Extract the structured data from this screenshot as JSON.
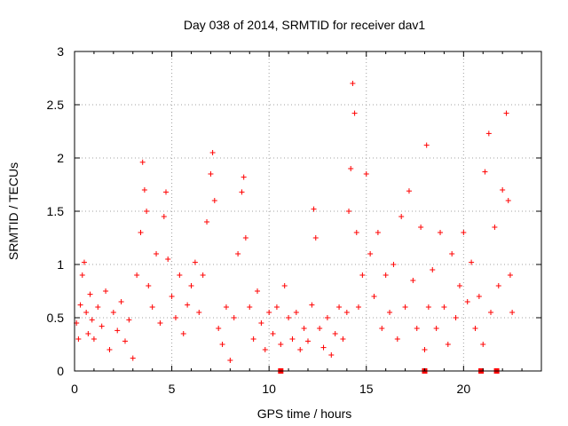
{
  "chart_data": {
    "type": "scatter",
    "title": "Day 038 of 2014, SRMTID for receiver dav1",
    "xlabel": "GPS time / hours",
    "ylabel": "SRMTID / TECUs",
    "xlim": [
      0,
      24
    ],
    "ylim": [
      0,
      3
    ],
    "x_ticks": [
      0,
      5,
      10,
      15,
      20
    ],
    "x_tick_labels": [
      "0",
      "5",
      "10",
      "15",
      "20"
    ],
    "y_ticks": [
      0,
      0.5,
      1,
      1.5,
      2,
      2.5,
      3
    ],
    "y_tick_labels": [
      "0",
      "0.5",
      "1",
      "1.5",
      "2",
      "2.5",
      "3"
    ],
    "grid": true,
    "series": [
      {
        "name": "SRMTID",
        "marker": "+",
        "color": "#ff0000",
        "points": [
          [
            0.1,
            0.45
          ],
          [
            0.2,
            0.3
          ],
          [
            0.3,
            0.62
          ],
          [
            0.4,
            0.9
          ],
          [
            0.5,
            1.02
          ],
          [
            0.6,
            0.55
          ],
          [
            0.7,
            0.35
          ],
          [
            0.8,
            0.72
          ],
          [
            0.9,
            0.48
          ],
          [
            1.0,
            0.3
          ],
          [
            1.2,
            0.6
          ],
          [
            1.4,
            0.42
          ],
          [
            1.6,
            0.75
          ],
          [
            1.8,
            0.2
          ],
          [
            2.0,
            0.55
          ],
          [
            2.2,
            0.38
          ],
          [
            2.4,
            0.65
          ],
          [
            2.6,
            0.28
          ],
          [
            2.8,
            0.48
          ],
          [
            3.0,
            0.12
          ],
          [
            3.2,
            0.9
          ],
          [
            3.4,
            1.3
          ],
          [
            3.5,
            1.96
          ],
          [
            3.6,
            1.7
          ],
          [
            3.7,
            1.5
          ],
          [
            3.8,
            0.8
          ],
          [
            4.0,
            0.6
          ],
          [
            4.2,
            1.1
          ],
          [
            4.4,
            0.45
          ],
          [
            4.6,
            1.45
          ],
          [
            4.7,
            1.68
          ],
          [
            4.8,
            1.05
          ],
          [
            5.0,
            0.7
          ],
          [
            5.2,
            0.5
          ],
          [
            5.4,
            0.9
          ],
          [
            5.6,
            0.35
          ],
          [
            5.8,
            0.62
          ],
          [
            6.0,
            0.8
          ],
          [
            6.2,
            1.02
          ],
          [
            6.4,
            0.55
          ],
          [
            6.6,
            0.9
          ],
          [
            6.8,
            1.4
          ],
          [
            7.0,
            1.85
          ],
          [
            7.1,
            2.05
          ],
          [
            7.2,
            1.6
          ],
          [
            7.4,
            0.4
          ],
          [
            7.6,
            0.25
          ],
          [
            7.8,
            0.6
          ],
          [
            8.0,
            0.1
          ],
          [
            8.2,
            0.5
          ],
          [
            8.4,
            1.1
          ],
          [
            8.6,
            1.68
          ],
          [
            8.7,
            1.82
          ],
          [
            8.8,
            1.25
          ],
          [
            9.0,
            0.6
          ],
          [
            9.2,
            0.3
          ],
          [
            9.4,
            0.75
          ],
          [
            9.6,
            0.45
          ],
          [
            9.8,
            0.2
          ],
          [
            10.0,
            0.55
          ],
          [
            10.2,
            0.35
          ],
          [
            10.4,
            0.6
          ],
          [
            10.6,
            0.25
          ],
          [
            10.8,
            0.8
          ],
          [
            11.0,
            0.5
          ],
          [
            11.2,
            0.3
          ],
          [
            11.4,
            0.55
          ],
          [
            11.6,
            0.2
          ],
          [
            11.8,
            0.4
          ],
          [
            12.0,
            0.28
          ],
          [
            12.2,
            0.62
          ],
          [
            12.3,
            1.52
          ],
          [
            12.4,
            1.25
          ],
          [
            12.6,
            0.4
          ],
          [
            12.8,
            0.22
          ],
          [
            13.0,
            0.5
          ],
          [
            13.2,
            0.15
          ],
          [
            13.4,
            0.35
          ],
          [
            13.6,
            0.6
          ],
          [
            13.8,
            0.3
          ],
          [
            14.0,
            0.55
          ],
          [
            14.1,
            1.5
          ],
          [
            14.2,
            1.9
          ],
          [
            14.3,
            2.7
          ],
          [
            14.4,
            2.42
          ],
          [
            14.5,
            1.3
          ],
          [
            14.6,
            0.6
          ],
          [
            14.8,
            0.9
          ],
          [
            15.0,
            1.85
          ],
          [
            15.2,
            1.1
          ],
          [
            15.4,
            0.7
          ],
          [
            15.6,
            1.3
          ],
          [
            15.8,
            0.4
          ],
          [
            16.0,
            0.9
          ],
          [
            16.2,
            0.55
          ],
          [
            16.4,
            1.0
          ],
          [
            16.6,
            0.3
          ],
          [
            16.8,
            1.45
          ],
          [
            17.0,
            0.6
          ],
          [
            17.2,
            1.69
          ],
          [
            17.4,
            0.85
          ],
          [
            17.6,
            0.4
          ],
          [
            17.8,
            1.35
          ],
          [
            18.0,
            0.2
          ],
          [
            18.1,
            2.12
          ],
          [
            18.2,
            0.6
          ],
          [
            18.4,
            0.95
          ],
          [
            18.6,
            0.4
          ],
          [
            18.8,
            1.3
          ],
          [
            19.0,
            0.6
          ],
          [
            19.2,
            0.25
          ],
          [
            19.4,
            1.1
          ],
          [
            19.6,
            0.5
          ],
          [
            19.8,
            0.8
          ],
          [
            20.0,
            1.3
          ],
          [
            20.2,
            0.65
          ],
          [
            20.4,
            1.02
          ],
          [
            20.6,
            0.4
          ],
          [
            20.8,
            0.7
          ],
          [
            21.0,
            0.25
          ],
          [
            21.1,
            1.87
          ],
          [
            21.3,
            2.23
          ],
          [
            21.4,
            0.55
          ],
          [
            21.6,
            1.35
          ],
          [
            21.8,
            0.8
          ],
          [
            22.0,
            1.7
          ],
          [
            22.2,
            2.42
          ],
          [
            22.3,
            1.6
          ],
          [
            22.4,
            0.9
          ],
          [
            22.5,
            0.55
          ]
        ]
      }
    ],
    "axis_markers": {
      "color": "#ff0000",
      "x": [
        10.6,
        18.0,
        20.9,
        21.7
      ]
    }
  }
}
